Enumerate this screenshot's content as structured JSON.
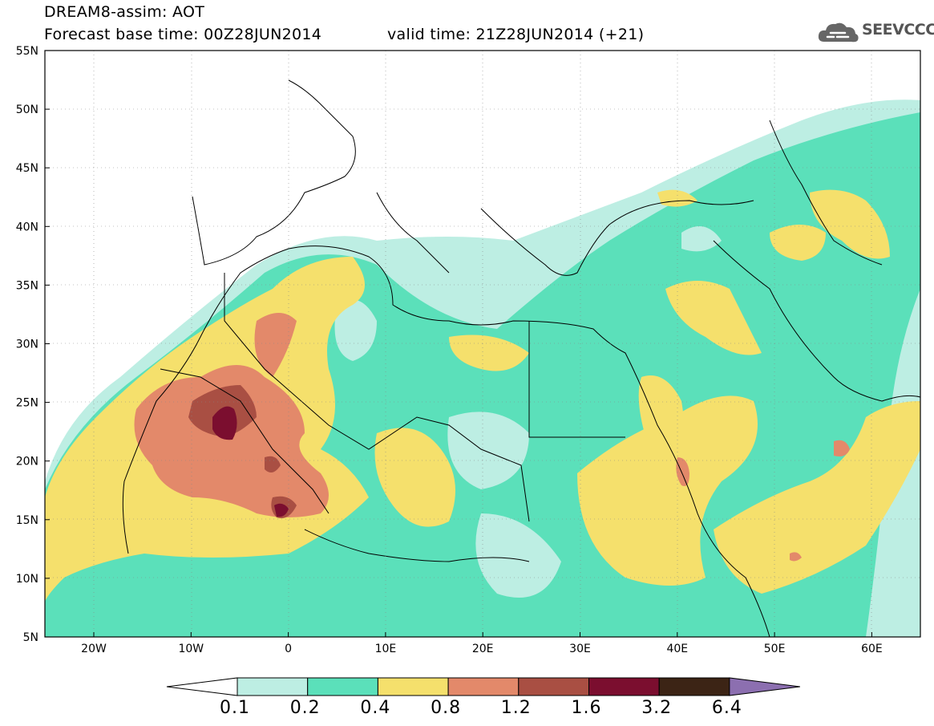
{
  "header": {
    "title": "DREAM8-assim: AOT",
    "base_time": "Forecast base time: 00Z28JUN2014",
    "valid_time": "valid time: 21Z28JUN2014 (+21)",
    "logo_text": "SEEVCCC"
  },
  "map": {
    "lat_labels": [
      "55N",
      "50N",
      "45N",
      "40N",
      "35N",
      "30N",
      "25N",
      "20N",
      "15N",
      "10N",
      "5N"
    ],
    "lon_labels": [
      "20W",
      "10W",
      "0",
      "10E",
      "20E",
      "30E",
      "40E",
      "50E",
      "60E"
    ],
    "extent": {
      "lon": [
        -25,
        65
      ],
      "lat": [
        5,
        55
      ]
    }
  },
  "colorbar": {
    "labels": [
      "0.1",
      "0.2",
      "0.4",
      "0.8",
      "1.2",
      "1.6",
      "3.2",
      "6.4"
    ],
    "colors": [
      "#ffffff",
      "#bdeee3",
      "#5be0ba",
      "#f5e06c",
      "#e3896a",
      "#a94f43",
      "#7b0e2f",
      "#3c2415",
      "#8c6fb0"
    ]
  }
}
